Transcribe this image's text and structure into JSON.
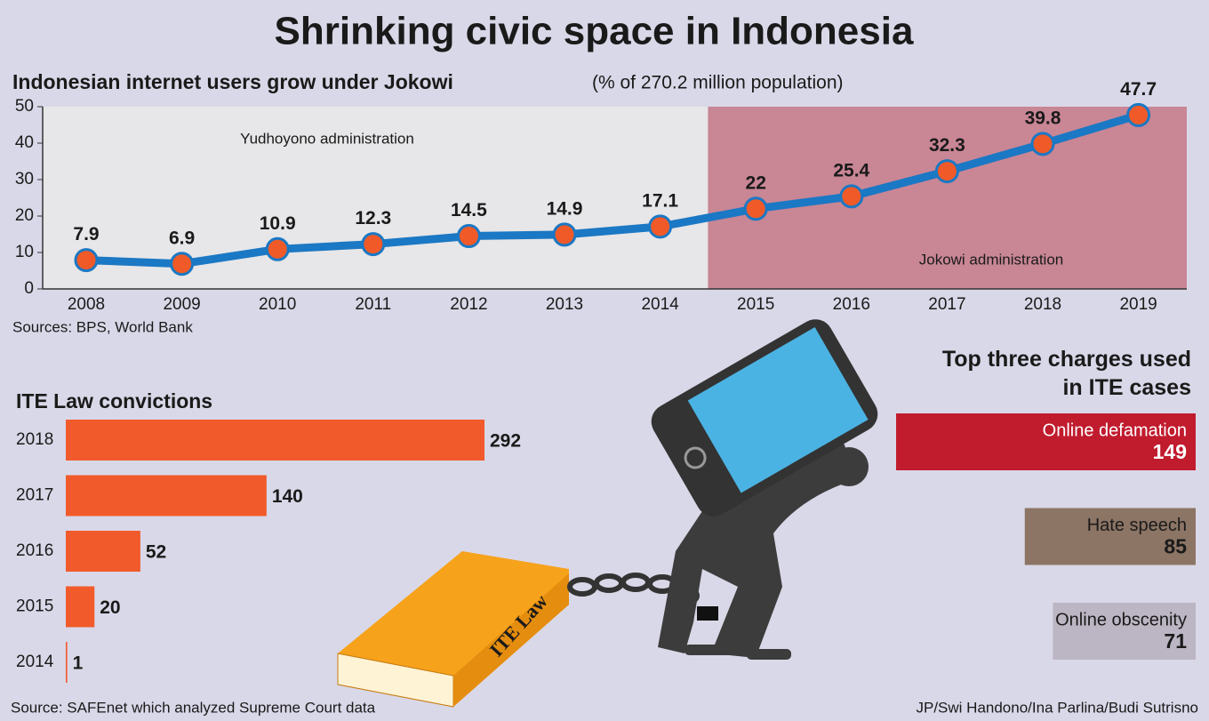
{
  "title": "Shrinking civic space in Indonesia",
  "credit": "JP/Swi Handono/Ina Parlina/Budi Sutrisno",
  "chart_data": [
    {
      "type": "line",
      "title": "Indonesian internet users grow under Jokowi",
      "subtitle": "(% of 270.2 million population)",
      "categories": [
        "2008",
        "2009",
        "2010",
        "2011",
        "2012",
        "2013",
        "2014",
        "2015",
        "2016",
        "2017",
        "2018",
        "2019"
      ],
      "values": [
        7.9,
        6.9,
        10.9,
        12.3,
        14.5,
        14.9,
        17.1,
        22,
        25.4,
        32.3,
        39.8,
        47.7
      ],
      "color": "#1b78c4",
      "marker_color": "#f05a28",
      "ylim": [
        0,
        50
      ],
      "yticks": [
        0,
        10,
        20,
        30,
        40,
        50
      ],
      "regions": [
        {
          "label": "Yudhoyono administration",
          "from": "2008",
          "to": "2014",
          "color": "#e7e6e8"
        },
        {
          "label": "Jokowi administration",
          "from": "2015",
          "to": "2019",
          "color": "#c98695"
        }
      ],
      "source": "Sources: BPS, World Bank"
    },
    {
      "type": "bar",
      "orientation": "horizontal",
      "title": "ITE Law convictions",
      "categories": [
        "2018",
        "2017",
        "2016",
        "2015",
        "2014"
      ],
      "values": [
        292,
        140,
        52,
        20,
        1
      ],
      "color": "#f15a2b",
      "source": "Source: SAFEnet which analyzed Supreme Court data"
    },
    {
      "type": "bar",
      "orientation": "horizontal",
      "title": "Top three charges used in ITE cases",
      "categories": [
        "Online defamation",
        "Hate speech",
        "Online obscenity"
      ],
      "values": [
        149,
        85,
        71
      ],
      "colors": [
        "#c11b2e",
        "#8c7565",
        "#bcb5c3"
      ],
      "label_colors": [
        "#ffffff",
        "#1a1a1a",
        "#1a1a1a"
      ]
    }
  ]
}
